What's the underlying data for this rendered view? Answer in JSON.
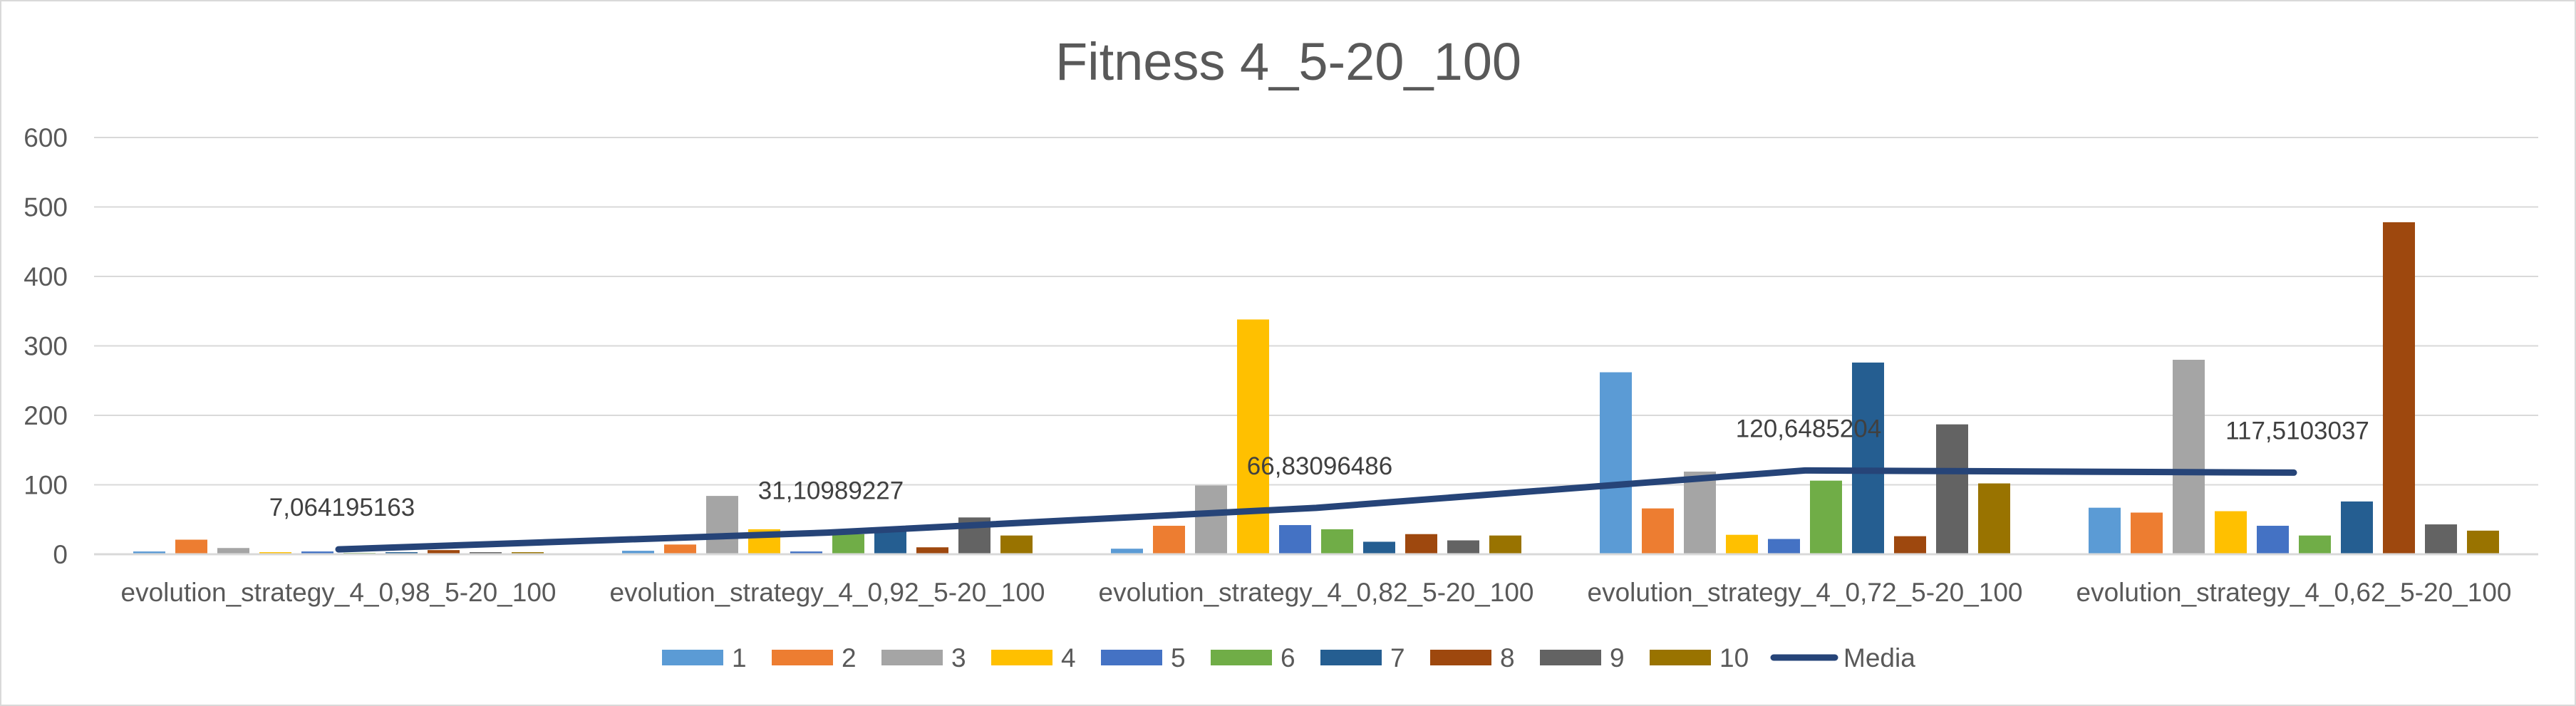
{
  "chart_data": {
    "type": "bar",
    "title": "Fitness 4_5-20_100",
    "xlabel": "",
    "ylabel": "",
    "ylim": [
      0,
      600
    ],
    "yticks": [
      0,
      100,
      200,
      300,
      400,
      500,
      600
    ],
    "grid": true,
    "legend_position": "bottom",
    "categories": [
      "evolution_strategy_4_0,98_5-20_100",
      "evolution_strategy_4_0,92_5-20_100",
      "evolution_strategy_4_0,82_5-20_100",
      "evolution_strategy_4_0,72_5-20_100",
      "evolution_strategy_4_0,62_5-20_100"
    ],
    "series": [
      {
        "name": "1",
        "color": "#5b9bd5",
        "values": [
          4,
          5,
          8,
          262,
          67
        ]
      },
      {
        "name": "2",
        "color": "#ed7d31",
        "values": [
          21,
          14,
          41,
          66,
          60
        ]
      },
      {
        "name": "3",
        "color": "#a5a5a5",
        "values": [
          9,
          84,
          99,
          119,
          280
        ]
      },
      {
        "name": "4",
        "color": "#ffc000",
        "values": [
          3,
          36,
          338,
          28,
          62
        ]
      },
      {
        "name": "5",
        "color": "#4472c4",
        "values": [
          4,
          4,
          42,
          22,
          41
        ]
      },
      {
        "name": "6",
        "color": "#70ad47",
        "values": [
          2,
          29,
          36,
          106,
          27
        ]
      },
      {
        "name": "7",
        "color": "#255e91",
        "values": [
          3,
          33,
          18,
          276,
          76
        ]
      },
      {
        "name": "8",
        "color": "#9e480e",
        "values": [
          6,
          10,
          29,
          26,
          478
        ]
      },
      {
        "name": "9",
        "color": "#636363",
        "values": [
          3,
          53,
          20,
          187,
          43
        ]
      },
      {
        "name": "10",
        "color": "#997300",
        "values": [
          3,
          27,
          27,
          102,
          34
        ]
      }
    ],
    "line_series": {
      "name": "Media",
      "color": "#264478",
      "values": [
        7.064195163,
        31.10989227,
        66.83096486,
        120.6485204,
        117.5103037
      ],
      "labels": [
        "7,064195163",
        "31,10989227",
        "66,83096486",
        "120,6485204",
        "117,5103037"
      ]
    }
  }
}
